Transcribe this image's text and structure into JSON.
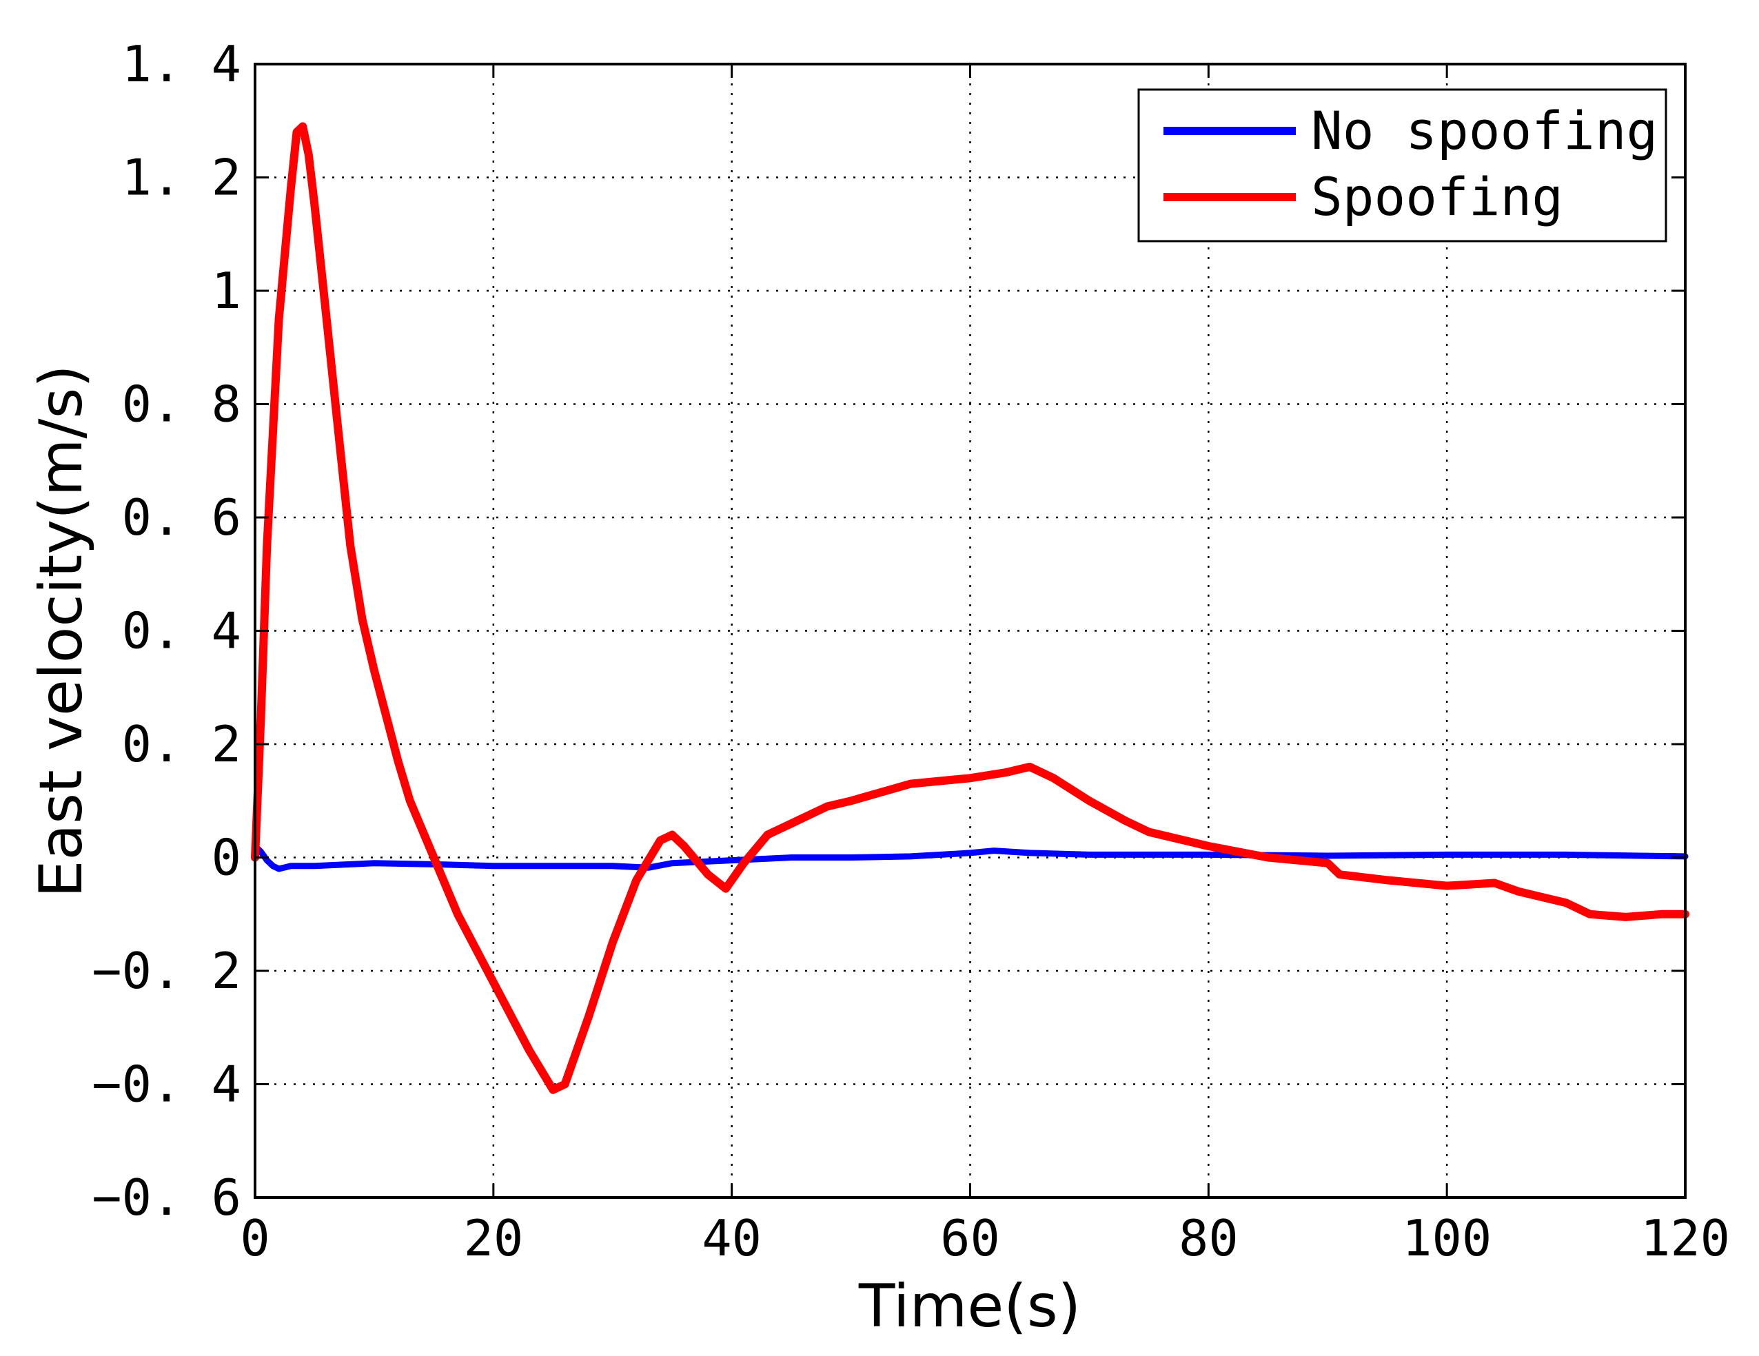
{
  "chart_data": {
    "type": "line",
    "title": "",
    "xlabel": "Time(s)",
    "ylabel": "East velocity(m/s)",
    "xlim": [
      0,
      120
    ],
    "ylim": [
      -0.6,
      1.4
    ],
    "xticks": [
      0,
      20,
      40,
      60,
      80,
      100,
      120
    ],
    "yticks": [
      -0.6,
      -0.4,
      -0.2,
      0,
      0.2,
      0.4,
      0.6,
      0.8,
      1,
      1.2,
      1.4
    ],
    "xtick_labels": [
      "0",
      "20",
      "40",
      "60",
      "80",
      "100",
      "120"
    ],
    "ytick_labels": [
      "−0. 6",
      "−0. 4",
      "−0. 2",
      "0",
      "0. 2",
      "0. 4",
      "0. 6",
      "0. 8",
      "1",
      "1. 2",
      "1. 4"
    ],
    "grid": true,
    "legend_position": "top-right",
    "series": [
      {
        "name": "No spoofing",
        "color": "#0000ff",
        "x": [
          0,
          0.5,
          1,
          1.5,
          2,
          3,
          5,
          8,
          10,
          15,
          20,
          25,
          30,
          33,
          35,
          40,
          45,
          50,
          55,
          60,
          62,
          65,
          70,
          75,
          80,
          90,
          100,
          110,
          120
        ],
        "y": [
          0.02,
          0.01,
          -0.005,
          -0.015,
          -0.02,
          -0.015,
          -0.015,
          -0.012,
          -0.01,
          -0.012,
          -0.015,
          -0.015,
          -0.015,
          -0.018,
          -0.01,
          -0.005,
          0.0,
          0.0,
          0.002,
          0.008,
          0.012,
          0.008,
          0.005,
          0.005,
          0.005,
          0.003,
          0.005,
          0.005,
          0.002
        ]
      },
      {
        "name": "Spoofing",
        "color": "#ff0000",
        "x": [
          0,
          0.5,
          1,
          2,
          3,
          3.5,
          4,
          4.5,
          5,
          6,
          7,
          8,
          9,
          10,
          11,
          12,
          13,
          14,
          15,
          17,
          20,
          23,
          25,
          26,
          28,
          30,
          32,
          34,
          35,
          36,
          38,
          39.5,
          41,
          43,
          45,
          48,
          50,
          55,
          60,
          63,
          65,
          67,
          70,
          73,
          75,
          80,
          85,
          90,
          91,
          95,
          100,
          104,
          106,
          108,
          110,
          112,
          115,
          118,
          120
        ],
        "y": [
          0.0,
          0.25,
          0.55,
          0.95,
          1.18,
          1.28,
          1.29,
          1.24,
          1.15,
          0.95,
          0.75,
          0.55,
          0.42,
          0.33,
          0.25,
          0.17,
          0.1,
          0.05,
          0.0,
          -0.1,
          -0.22,
          -0.34,
          -0.41,
          -0.4,
          -0.28,
          -0.15,
          -0.04,
          0.03,
          0.04,
          0.02,
          -0.03,
          -0.055,
          -0.01,
          0.04,
          0.06,
          0.09,
          0.1,
          0.13,
          0.14,
          0.15,
          0.16,
          0.14,
          0.1,
          0.065,
          0.045,
          0.02,
          0.0,
          -0.01,
          -0.03,
          -0.04,
          -0.05,
          -0.045,
          -0.06,
          -0.07,
          -0.08,
          -0.1,
          -0.105,
          -0.1,
          -0.1
        ]
      }
    ]
  }
}
